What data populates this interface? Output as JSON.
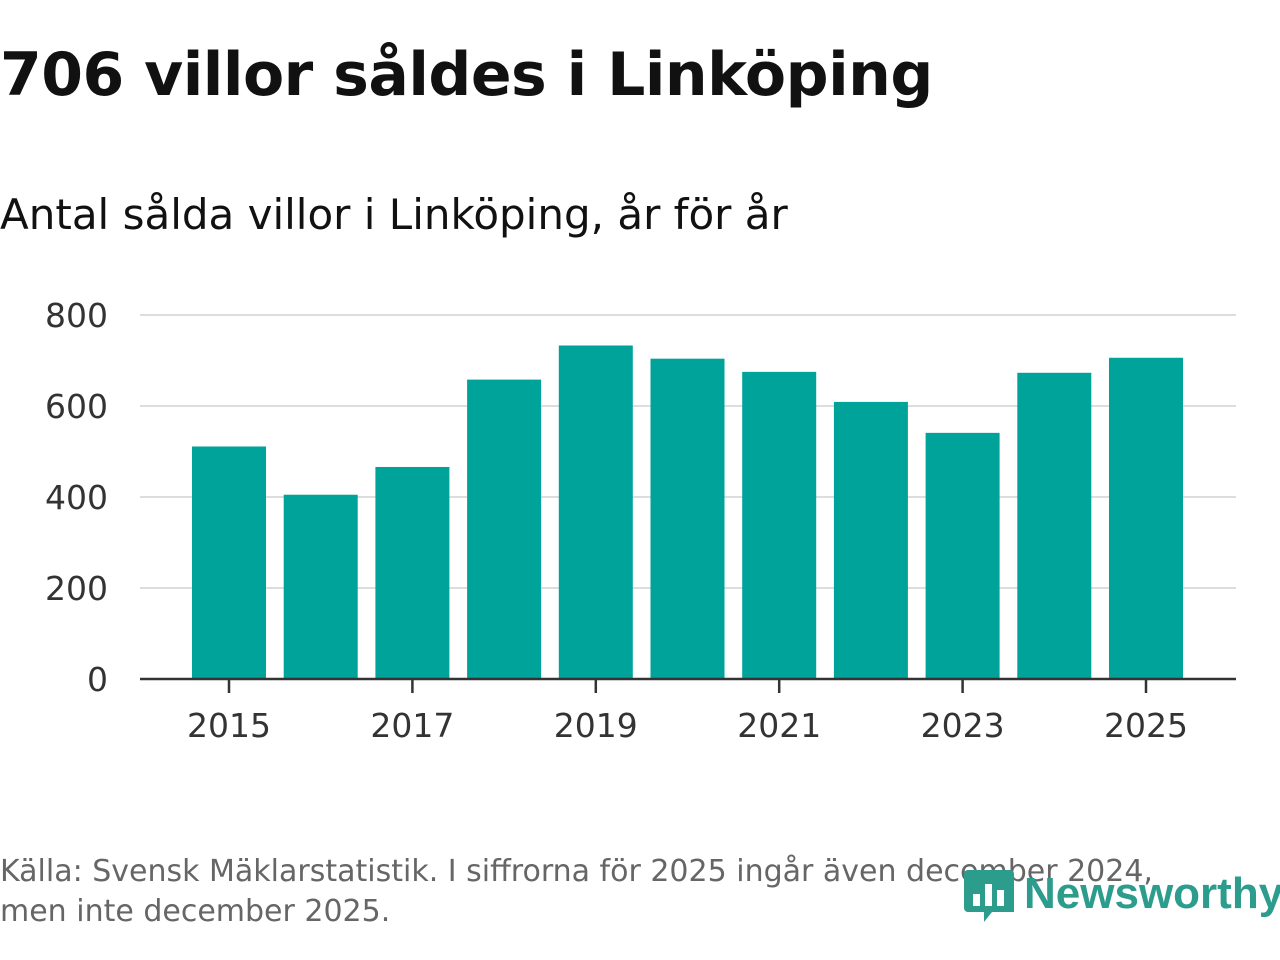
{
  "title": "706 villor såldes i Linköping",
  "subtitle": "Antal sålda villor i Linköping, år för år",
  "footer": "Källa: Svensk Mäklarstatistik. I siffrorna för 2025 ingår även december 2024, men inte december 2025.",
  "logo": {
    "text": "Newsworthy",
    "icon": "newsworthy-bar-chart-icon"
  },
  "colors": {
    "bar": "#00a39a",
    "grid": "#dddddd",
    "axis": "#333333",
    "logo": "#2c9c8c"
  },
  "chart_data": {
    "type": "bar",
    "title": "Antal sålda villor i Linköping, år för år",
    "xlabel": "",
    "ylabel": "",
    "categories": [
      "2015",
      "2016",
      "2017",
      "2018",
      "2019",
      "2020",
      "2021",
      "2022",
      "2023",
      "2024",
      "2025"
    ],
    "values": [
      511,
      405,
      466,
      658,
      733,
      704,
      675,
      609,
      541,
      673,
      706
    ],
    "ylim": [
      0,
      800
    ],
    "yticks": [
      0,
      200,
      400,
      600,
      800
    ],
    "ytick_labels": [
      "0",
      "200",
      "400",
      "600",
      "800"
    ],
    "xtick_labels": [
      "2015",
      "2017",
      "2019",
      "2021",
      "2023",
      "2025"
    ],
    "grid": true
  }
}
